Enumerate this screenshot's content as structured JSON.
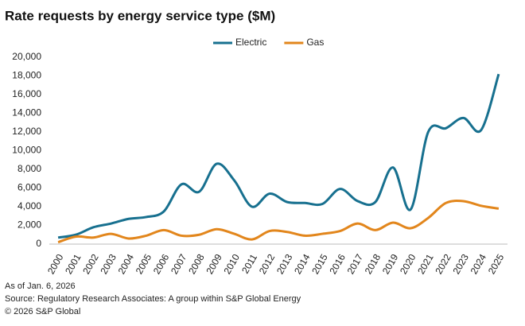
{
  "chart_data": {
    "type": "line",
    "title": "Rate requests by energy service type ($M)",
    "categories": [
      "2000",
      "2001",
      "2002",
      "2003",
      "2004",
      "2005",
      "2006",
      "2007",
      "2008",
      "2009",
      "2010",
      "2011",
      "2012",
      "2013",
      "2014",
      "2015",
      "2016",
      "2017",
      "2018",
      "2019",
      "2020",
      "2021",
      "2022",
      "2023",
      "2024",
      "2025"
    ],
    "series": [
      {
        "name": "Electric",
        "color": "#17708f",
        "values": [
          700,
          1000,
          1800,
          2200,
          2700,
          2900,
          3500,
          6400,
          5600,
          8600,
          6800,
          4000,
          5400,
          4500,
          4400,
          4300,
          5900,
          4600,
          4500,
          8200,
          3700,
          12000,
          12400,
          13500,
          12200,
          18200
        ]
      },
      {
        "name": "Gas",
        "color": "#e2861c",
        "values": [
          200,
          800,
          700,
          1100,
          600,
          900,
          1500,
          900,
          1000,
          1600,
          1100,
          500,
          1400,
          1300,
          900,
          1100,
          1400,
          2200,
          1500,
          2300,
          1700,
          2800,
          4400,
          4600,
          4100,
          3800
        ]
      }
    ],
    "ylim": [
      0,
      20000
    ],
    "yticks": [
      0,
      {
        "value": 2000,
        "label": "2,000"
      },
      {
        "value": 4000,
        "label": "4,000"
      },
      {
        "value": 6000,
        "label": "6,000"
      },
      {
        "value": 8000,
        "label": "8,000"
      },
      {
        "value": 10000,
        "label": "10,000"
      },
      {
        "value": 12000,
        "label": "12,000"
      },
      {
        "value": 14000,
        "label": "14,000"
      },
      {
        "value": 16000,
        "label": "16,000"
      },
      {
        "value": 18000,
        "label": "18,000"
      },
      {
        "value": 20000,
        "label": "20,000"
      }
    ],
    "grid": false,
    "legend": "top",
    "notes": [
      "As of Jan. 6, 2026",
      "Source: Regulatory Research Associates: A group within S&P Global Energy",
      "© 2026 S&P Global"
    ]
  }
}
